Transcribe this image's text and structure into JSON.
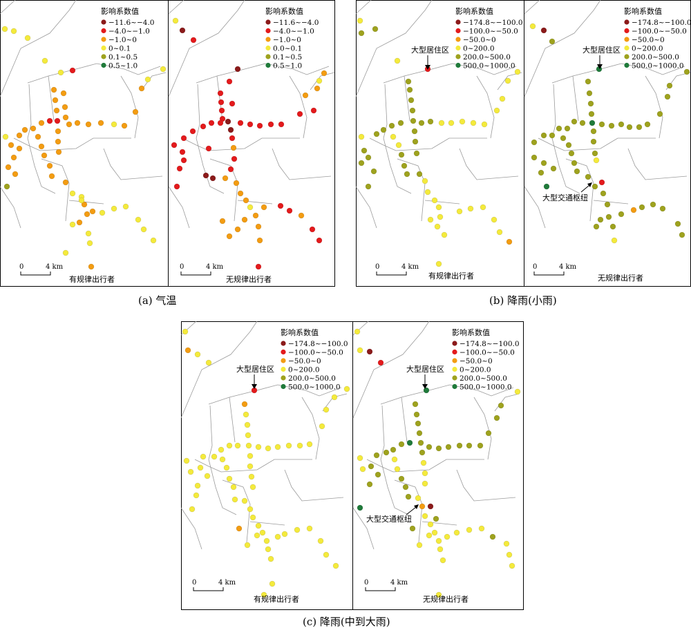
{
  "legend_title": "影响系数值",
  "legend_temp": [
    {
      "label": "−11.6~−4.0",
      "color": "#8b1a1a"
    },
    {
      "label": "−4.0~−1.0",
      "color": "#e31a1c"
    },
    {
      "label": "−1.0~0",
      "color": "#f39c12"
    },
    {
      "label": "0~0.1",
      "color": "#f4ea3c"
    },
    {
      "label": "0.1~0.5",
      "color": "#9ea21e"
    },
    {
      "label": "0.5~1.0",
      "color": "#1f7a3a"
    }
  ],
  "legend_temp_irregular": [
    {
      "label": "−11.6~−4.0",
      "color": "#8b1a1a"
    },
    {
      "label": "−4.0~−1.0",
      "color": "#e31a1c"
    },
    {
      "label": "−1.0~0",
      "color": "#f39c12"
    },
    {
      "label": "0.0~0.1",
      "color": "#f4ea3c"
    },
    {
      "label": "0.1~0.5",
      "color": "#9ea21e"
    },
    {
      "label": "0.5~1.0",
      "color": "#1f7a3a"
    }
  ],
  "legend_rain": [
    {
      "label": "−174.8~−100.0",
      "color": "#8b1a1a"
    },
    {
      "label": "−100.0~−50.0",
      "color": "#e31a1c"
    },
    {
      "label": "−50.0~0",
      "color": "#f39c12"
    },
    {
      "label": "0~200.0",
      "color": "#f4ea3c"
    },
    {
      "label": "200.0~500.0",
      "color": "#9ea21e"
    },
    {
      "label": "500.0~1000.0",
      "color": "#1f7a3a"
    }
  ],
  "scale_zero": "0",
  "scale_dist": "4 km",
  "regular": "有规律出行者",
  "irregular": "无规律出行者",
  "ann_residential": "大型居住区",
  "ann_hub": "大型交通枢纽",
  "caption_a": "(a) 气温",
  "caption_b": "(b) 降雨(小雨)",
  "caption_c": "(c) 降雨(中到大雨)"
}
